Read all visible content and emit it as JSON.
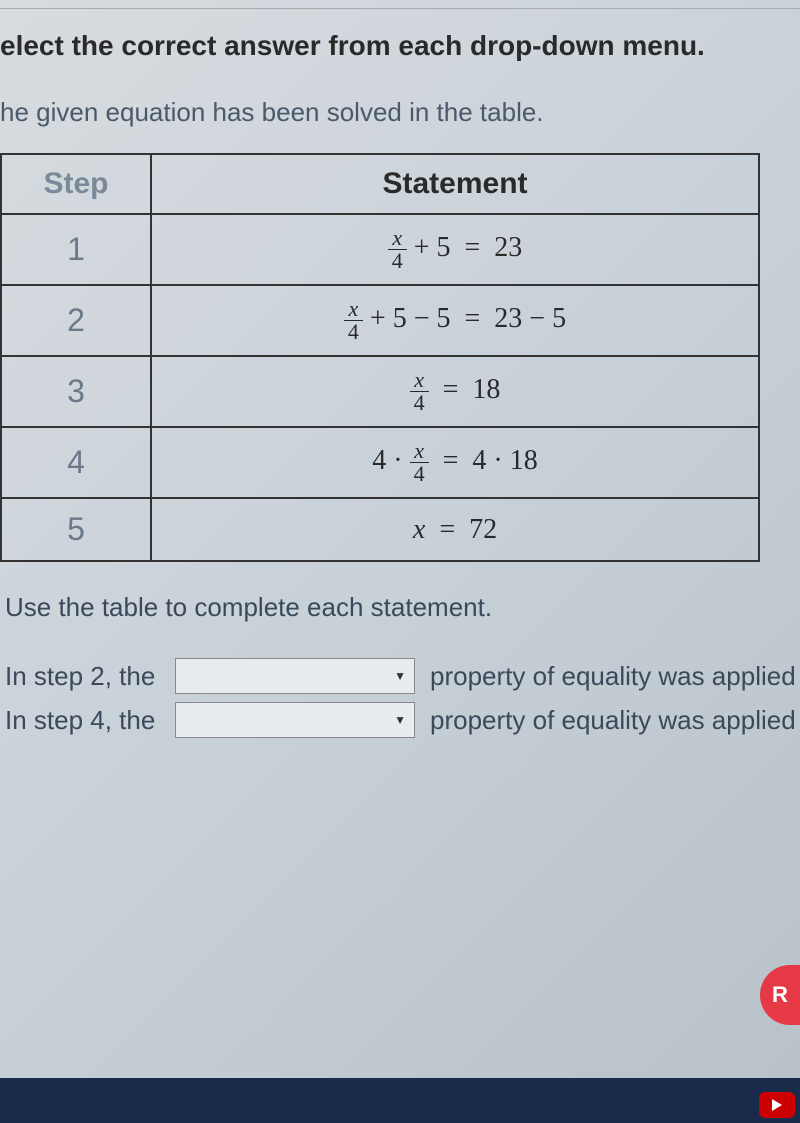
{
  "title": "elect the correct answer from each drop-down menu.",
  "subtitle": "he given equation has been solved in the table.",
  "table": {
    "headers": [
      "Step",
      "Statement"
    ],
    "rows": [
      {
        "step": "1",
        "statement_html": "frac_x4 + 5 = 23"
      },
      {
        "step": "2",
        "statement_html": "frac_x4 + 5 − 5 = 23 − 5"
      },
      {
        "step": "3",
        "statement_html": "frac_x4 = 18"
      },
      {
        "step": "4",
        "statement_html": "4 · frac_x4 = 4 · 18"
      },
      {
        "step": "5",
        "statement_html": "x = 72"
      }
    ],
    "border_color": "#333333",
    "header_fontsize": 30,
    "cell_fontsize": 28
  },
  "instruction": "Use the table to complete each statement.",
  "statements": [
    {
      "prefix": "In step 2, the",
      "selected": "",
      "suffix": "property of equality was applied"
    },
    {
      "prefix": "In step 4, the",
      "selected": "",
      "suffix": "property of equality was applied"
    }
  ],
  "red_button_label": "R",
  "footer_text": "",
  "colors": {
    "background_gradient_start": "#d8dce0",
    "background_gradient_end": "#b8c0c8",
    "text_primary": "#2a2a2a",
    "text_secondary": "#4a5a6a",
    "step_header_color": "#7a8a9a",
    "dropdown_bg": "#e8ecf0",
    "red_button": "#e63946",
    "bottom_bar": "#1a2a4a"
  },
  "typography": {
    "title_fontsize": 28,
    "subtitle_fontsize": 26,
    "instruction_fontsize": 26,
    "body_font": "Arial",
    "math_font": "Times New Roman"
  }
}
